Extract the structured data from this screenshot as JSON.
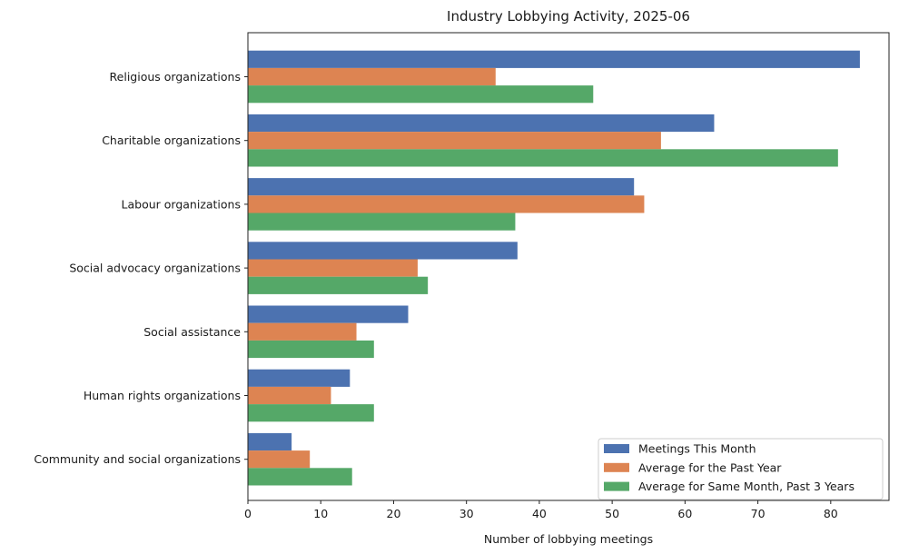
{
  "chart_data": {
    "type": "bar",
    "orientation": "horizontal",
    "title": "Industry Lobbying Activity, 2025-06",
    "xlabel": "Number of lobbying meetings",
    "ylabel": "",
    "xlim": [
      0,
      88
    ],
    "xticks": [
      0,
      10,
      20,
      30,
      40,
      50,
      60,
      70,
      80
    ],
    "grid": false,
    "legend_position": "bottom-right",
    "categories": [
      "Religious organizations",
      "Charitable organizations",
      "Labour organizations",
      "Social advocacy organizations",
      "Social assistance",
      "Human rights organizations",
      "Community and social organizations"
    ],
    "series": [
      {
        "name": "Meetings This Month",
        "color": "#4c72b0",
        "values": [
          84,
          64,
          53,
          37,
          22,
          14,
          6
        ]
      },
      {
        "name": "Average for the Past Year",
        "color": "#dd8452",
        "values": [
          34,
          56.7,
          54.4,
          23.3,
          14.9,
          11.4,
          8.5
        ]
      },
      {
        "name": "Average for Same Month, Past 3 Years",
        "color": "#55a868",
        "values": [
          47.4,
          81.0,
          36.7,
          24.7,
          17.3,
          17.3,
          14.3
        ]
      }
    ]
  }
}
